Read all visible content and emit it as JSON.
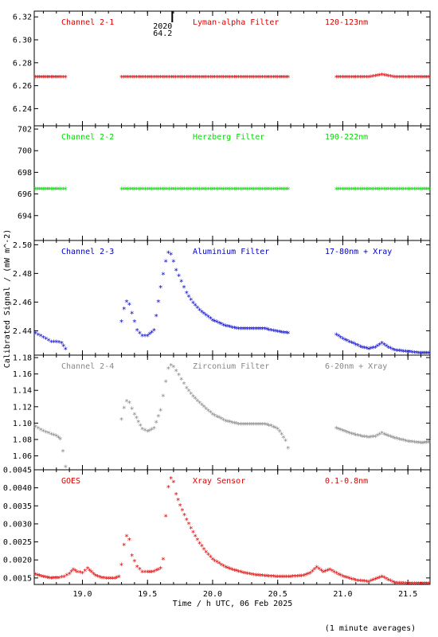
{
  "chart_data": {
    "type": "scatter",
    "ylabel": "Calibrated Signal / (mW m^-2)",
    "xlabel": "Time / h UTC, 06 Feb 2025",
    "footnote": "(1 minute averages)",
    "xlim": [
      18.63,
      21.67
    ],
    "xticks": [
      "19.0",
      "19.5",
      "20.0",
      "20.5",
      "21.0",
      "21.5"
    ],
    "marker": {
      "time": "19.69",
      "lines": [
        "2020",
        "64.2"
      ]
    },
    "panels": [
      {
        "labels": [
          "Channel 2-1",
          "Lyman-alpha Filter",
          "120-123nm"
        ],
        "color": "#dd0000",
        "ylim": [
          6.225,
          6.325
        ],
        "yticks": [
          "6.24",
          "6.26",
          "6.28",
          "6.30",
          "6.32"
        ],
        "segments": [
          {
            "x": [
              18.64,
              18.7,
              18.76,
              18.82,
              18.87
            ],
            "y": [
              6.267,
              6.267,
              6.267,
              6.267,
              6.267
            ]
          },
          {
            "x": [
              19.3,
              19.4,
              19.5,
              19.6,
              19.7,
              19.8,
              19.9,
              20.0,
              20.1,
              20.2,
              20.3,
              20.4,
              20.5,
              20.58
            ],
            "y": [
              6.267,
              6.267,
              6.267,
              6.267,
              6.267,
              6.267,
              6.267,
              6.267,
              6.267,
              6.267,
              6.267,
              6.267,
              6.267,
              6.267
            ]
          },
          {
            "x": [
              20.95,
              21.0,
              21.1,
              21.2,
              21.25,
              21.3,
              21.35,
              21.4,
              21.5,
              21.6,
              21.66
            ],
            "y": [
              6.267,
              6.267,
              6.267,
              6.267,
              6.268,
              6.269,
              6.268,
              6.267,
              6.267,
              6.267,
              6.267
            ]
          }
        ]
      },
      {
        "labels": [
          "Channel 2-2",
          "Herzberg Filter",
          "190-222nm"
        ],
        "color": "#00dd00",
        "ylim": [
          691.7,
          702.3
        ],
        "yticks": [
          "694",
          "696",
          "698",
          "700",
          "702"
        ],
        "segments": [
          {
            "x": [
              18.64,
              18.7,
              18.76,
              18.82,
              18.87
            ],
            "y": [
              696.4,
              696.4,
              696.4,
              696.4,
              696.4
            ]
          },
          {
            "x": [
              19.3,
              19.4,
              19.5,
              19.6,
              19.7,
              19.8,
              19.9,
              20.0,
              20.1,
              20.2,
              20.3,
              20.4,
              20.5,
              20.58
            ],
            "y": [
              696.4,
              696.4,
              696.4,
              696.4,
              696.4,
              696.4,
              696.4,
              696.4,
              696.4,
              696.4,
              696.4,
              696.4,
              696.4,
              696.4
            ]
          },
          {
            "x": [
              20.95,
              21.0,
              21.1,
              21.2,
              21.3,
              21.4,
              21.5,
              21.6,
              21.66
            ],
            "y": [
              696.4,
              696.4,
              696.4,
              696.4,
              696.4,
              696.4,
              696.4,
              696.4,
              696.4
            ]
          }
        ]
      },
      {
        "labels": [
          "Channel 2-3",
          "Aluminium Filter",
          "17-80nm + Xray"
        ],
        "color": "#0000cc",
        "ylim": [
          2.423,
          2.503
        ],
        "yticks": [
          "2.44",
          "2.46",
          "2.48",
          "2.50"
        ],
        "segments": [
          {
            "x": [
              18.64,
              18.68,
              18.72,
              18.76,
              18.8,
              18.84,
              18.87
            ],
            "y": [
              2.438,
              2.436,
              2.434,
              2.432,
              2.432,
              2.431,
              2.427
            ]
          },
          {
            "x": [
              19.3,
              19.32,
              19.34,
              19.36,
              19.38,
              19.42,
              19.46,
              19.5,
              19.55,
              19.6,
              19.64,
              19.66,
              19.68,
              19.7,
              19.72,
              19.76,
              19.8,
              19.85,
              19.9,
              20.0,
              20.1,
              20.2,
              20.3,
              20.4,
              20.5,
              20.58
            ],
            "y": [
              2.446,
              2.455,
              2.46,
              2.458,
              2.452,
              2.44,
              2.436,
              2.436,
              2.44,
              2.47,
              2.488,
              2.494,
              2.493,
              2.488,
              2.482,
              2.474,
              2.466,
              2.459,
              2.454,
              2.447,
              2.443,
              2.441,
              2.441,
              2.441,
              2.439,
              2.438
            ]
          },
          {
            "x": [
              20.95,
              21.0,
              21.05,
              21.1,
              21.15,
              21.2,
              21.25,
              21.3,
              21.35,
              21.4,
              21.5,
              21.6,
              21.66
            ],
            "y": [
              2.437,
              2.434,
              2.432,
              2.43,
              2.428,
              2.427,
              2.428,
              2.431,
              2.428,
              2.426,
              2.425,
              2.424,
              2.424
            ]
          }
        ]
      },
      {
        "labels": [
          "Channel 2-4",
          "Zirconium Filter",
          "6-20nm + Xray"
        ],
        "color": "#888888",
        "ylim": [
          1.043,
          1.183
        ],
        "yticks": [
          "1.06",
          "1.08",
          "1.10",
          "1.12",
          "1.14",
          "1.16",
          "1.18"
        ],
        "segments": [
          {
            "x": [
              18.64,
              18.68,
              18.72,
              18.76,
              18.8,
              18.83,
              18.85,
              18.87
            ],
            "y": [
              1.095,
              1.091,
              1.088,
              1.086,
              1.084,
              1.08,
              1.065,
              1.046
            ]
          },
          {
            "x": [
              19.3,
              19.32,
              19.34,
              19.36,
              19.4,
              19.46,
              19.5,
              19.55,
              19.6,
              19.64,
              19.66,
              19.68,
              19.7,
              19.72,
              19.76,
              19.8,
              19.85,
              19.9,
              20.0,
              20.1,
              20.2,
              20.3,
              20.4,
              20.45,
              20.5,
              20.53,
              20.56,
              20.58
            ],
            "y": [
              1.104,
              1.118,
              1.126,
              1.124,
              1.11,
              1.092,
              1.089,
              1.093,
              1.115,
              1.15,
              1.166,
              1.17,
              1.168,
              1.163,
              1.153,
              1.142,
              1.132,
              1.124,
              1.11,
              1.102,
              1.098,
              1.098,
              1.098,
              1.096,
              1.092,
              1.086,
              1.078,
              1.069
            ]
          },
          {
            "x": [
              20.95,
              21.0,
              21.05,
              21.1,
              21.15,
              21.2,
              21.25,
              21.3,
              21.35,
              21.4,
              21.5,
              21.6,
              21.66
            ],
            "y": [
              1.093,
              1.09,
              1.087,
              1.085,
              1.083,
              1.082,
              1.083,
              1.087,
              1.084,
              1.081,
              1.077,
              1.075,
              1.076
            ]
          }
        ]
      },
      {
        "labels": [
          "GOES",
          "Xray Sensor",
          "0.1-0.8nm"
        ],
        "color": "#dd0000",
        "ylim": [
          0.00132,
          0.0045
        ],
        "yticks": [
          "0.0015",
          "0.0020",
          "0.0025",
          "0.0030",
          "0.0035",
          "0.0040",
          "0.0045"
        ],
        "segments": [
          {
            "x": [
              18.64,
              18.7,
              18.76,
              18.82,
              18.86,
              18.9,
              18.93,
              18.96,
              19.0,
              19.04,
              19.07,
              19.1,
              19.15,
              19.2,
              19.25,
              19.28,
              19.3,
              19.32,
              19.34,
              19.36,
              19.38,
              19.42,
              19.46,
              19.5,
              19.55,
              19.6,
              19.62,
              19.64,
              19.66,
              19.68,
              19.7,
              19.72,
              19.75,
              19.8,
              19.85,
              19.9,
              19.95,
              20.0,
              20.1,
              20.2,
              20.3,
              20.4,
              20.5,
              20.6,
              20.7,
              20.75,
              20.8,
              20.85,
              20.9,
              20.95,
              21.0,
              21.1,
              21.2,
              21.3,
              21.4,
              21.5,
              21.6,
              21.66
            ],
            "y": [
              0.00158,
              0.00152,
              0.00148,
              0.00149,
              0.00152,
              0.0016,
              0.00172,
              0.00165,
              0.00162,
              0.00175,
              0.00165,
              0.00155,
              0.00149,
              0.00147,
              0.00148,
              0.00152,
              0.00185,
              0.0024,
              0.00265,
              0.00255,
              0.0021,
              0.0018,
              0.00165,
              0.00165,
              0.00166,
              0.00175,
              0.002,
              0.0032,
              0.004,
              0.00425,
              0.00415,
              0.0038,
              0.0035,
              0.0031,
              0.00275,
              0.00245,
              0.0022,
              0.002,
              0.00178,
              0.00166,
              0.00158,
              0.00154,
              0.00152,
              0.00152,
              0.00155,
              0.00162,
              0.00178,
              0.00165,
              0.00172,
              0.00162,
              0.00153,
              0.00142,
              0.00138,
              0.00152,
              0.00135,
              0.00133,
              0.00133,
              0.00133
            ]
          }
        ]
      }
    ]
  }
}
